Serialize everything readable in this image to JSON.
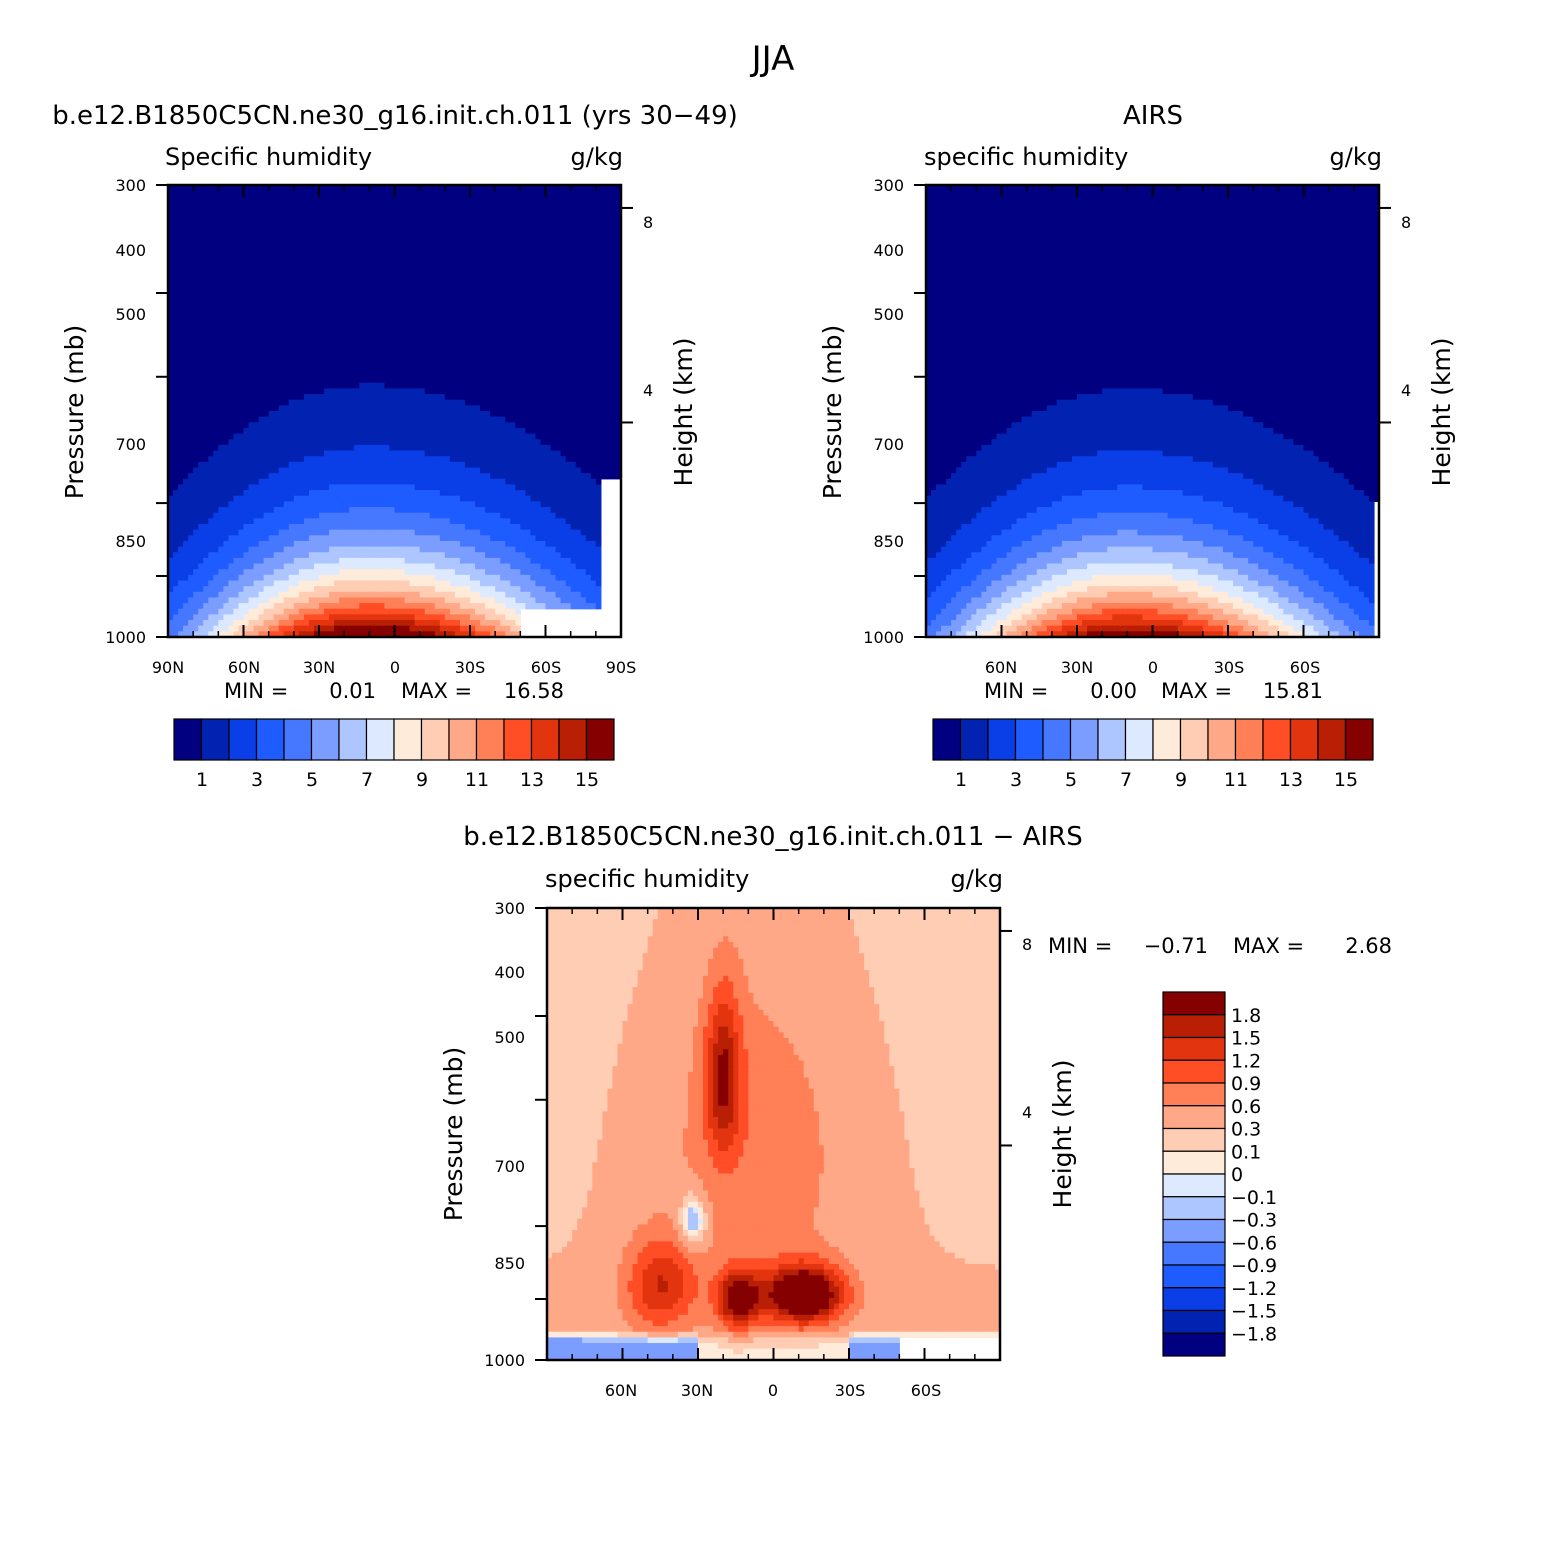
{
  "figure": {
    "season_title": "JJA",
    "colors": {
      "abs_levels": [
        "#000080",
        "#0223b2",
        "#0a3ee6",
        "#1e5cff",
        "#4678ff",
        "#7a9dff",
        "#aec6ff",
        "#dce9ff",
        "#ffebd9",
        "#ffcdb3",
        "#ffa887",
        "#ff7f57",
        "#ff4d26",
        "#e2340e",
        "#b81f05",
        "#850000"
      ],
      "diff_levels": [
        "#000080",
        "#0223b2",
        "#0a3ee6",
        "#1e5cff",
        "#4678ff",
        "#7a9dff",
        "#aec6ff",
        "#dce9ff",
        "#ffebd9",
        "#ffcdb3",
        "#ffa887",
        "#ff7f57",
        "#ff4d26",
        "#e2340e",
        "#b81f05",
        "#850000"
      ]
    }
  },
  "chart_data": [
    {
      "type": "heatmap",
      "title": "b.e12.B1850C5CN.ne30_g16.init.ch.011 (yrs 30−49)",
      "left_label": "Specific humidity",
      "right_label": "g/kg",
      "ylabel": "Pressure (mb)",
      "ylabel_right": "Height (km)",
      "x_ticklabels": [
        "90N",
        "60N",
        "30N",
        "0",
        "30S",
        "60S",
        "90S"
      ],
      "y_ticklabels": [
        "300",
        "400",
        "500",
        "700",
        "850",
        "1000"
      ],
      "right_ticklabels": [
        "8",
        "4"
      ],
      "stats": {
        "min_label": "MIN =",
        "min_value": "0.01",
        "max_label": "MAX =",
        "max_value": "16.58"
      },
      "colorbar_labels": [
        "1",
        "3",
        "5",
        "7",
        "9",
        "11",
        "13",
        "15"
      ],
      "peak_value": 16.58,
      "peak_lat": 10,
      "peak_plev": 950
    },
    {
      "type": "heatmap",
      "title": "AIRS",
      "left_label": "specific humidity",
      "right_label": "g/kg",
      "ylabel": "Pressure (mb)",
      "ylabel_right": "Height (km)",
      "x_ticklabels": [
        "60N",
        "30N",
        "0",
        "30S",
        "60S"
      ],
      "y_ticklabels": [
        "300",
        "400",
        "500",
        "700",
        "850",
        "1000"
      ],
      "right_ticklabels": [
        "8",
        "4"
      ],
      "stats": {
        "min_label": "MIN =",
        "min_value": "0.00",
        "max_label": "MAX =",
        "max_value": "15.81"
      },
      "colorbar_labels": [
        "1",
        "3",
        "5",
        "7",
        "9",
        "11",
        "13",
        "15"
      ],
      "peak_value": 15.81,
      "peak_lat": 10,
      "peak_plev": 980
    },
    {
      "type": "heatmap",
      "title": "b.e12.B1850C5CN.ne30_g16.init.ch.011 − AIRS",
      "left_label": "specific humidity",
      "right_label": "g/kg",
      "ylabel": "Pressure (mb)",
      "ylabel_right": "Height (km)",
      "x_ticklabels": [
        "60N",
        "30N",
        "0",
        "30S",
        "60S"
      ],
      "y_ticklabels": [
        "300",
        "400",
        "500",
        "700",
        "850",
        "1000"
      ],
      "right_ticklabels": [
        "8",
        "4"
      ],
      "stats": {
        "min_label": "MIN =",
        "min_value": "−0.71",
        "max_label": "MAX =",
        "max_value": "2.68"
      },
      "colorbar_labels": [
        "1.8",
        "1.5",
        "1.2",
        "0.9",
        "0.6",
        "0.3",
        "0.1",
        "0",
        "−0.1",
        "−0.3",
        "−0.6",
        "−0.9",
        "−1.2",
        "−1.5",
        "−1.8"
      ],
      "contour_levels": [
        -1.8,
        -1.5,
        -1.2,
        -0.9,
        -0.6,
        -0.3,
        -0.1,
        0,
        0.1,
        0.3,
        0.6,
        0.9,
        1.2,
        1.5,
        1.8
      ]
    }
  ]
}
